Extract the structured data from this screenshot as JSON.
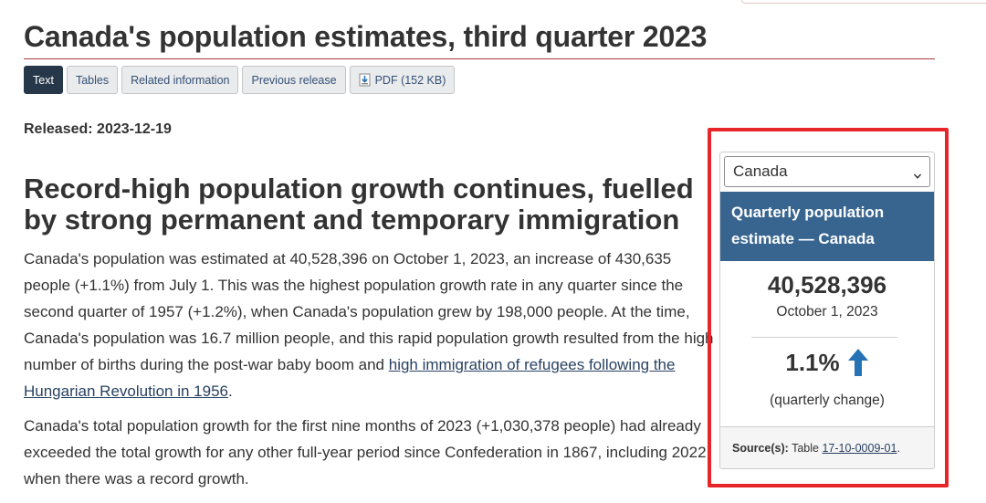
{
  "page": {
    "title": "Canada's population estimates, third quarter 2023",
    "released": "Released: 2023-12-19"
  },
  "tabs": [
    {
      "label": "Text",
      "active": true
    },
    {
      "label": "Tables"
    },
    {
      "label": "Related information"
    },
    {
      "label": "Previous release"
    },
    {
      "label": "PDF (152 KB)",
      "icon": "pdf-download-icon"
    }
  ],
  "article": {
    "headline": "Record-high population growth continues, fuelled by strong permanent and temporary immigration",
    "para1_text": "Canada's population was estimated at 40,528,396 on October 1, 2023, an increase of 430,635 people (+1.1%) from July 1. This was the highest population growth rate in any quarter since the second quarter of 1957 (+1.2%), when Canada's population grew by 198,000 people. At the time, Canada's population was 16.7 million people, and this rapid population growth resulted from the high number of births during the post-war baby boom and ",
    "para1_link": "high immigration of refugees following the Hungarian Revolution in 1956",
    "para1_end": ".",
    "para2_text": "Canada's total population growth for the first nine months of 2023 (+1,030,378 people) had already exceeded the total growth for any other full-year period since Confederation in 1867, including 2022, when there was a record growth."
  },
  "panel": {
    "geo_selected": "Canada",
    "heading": "Quarterly population estimate — Canada",
    "population": "40,528,396",
    "date": "October 1, 2023",
    "change": "1.1%",
    "change_direction_icon": "arrow-up-icon",
    "change_label": "(quarterly change)",
    "source_label": "Source(s):",
    "source_text": "Table",
    "source_link": "17-10-0009-01",
    "source_end": "."
  },
  "colors": {
    "title_rule": "#af3c43",
    "active_tab": "#26374a",
    "panel_header": "#38658f",
    "arrow": "#2572b4",
    "highlight": "#e8262a"
  }
}
